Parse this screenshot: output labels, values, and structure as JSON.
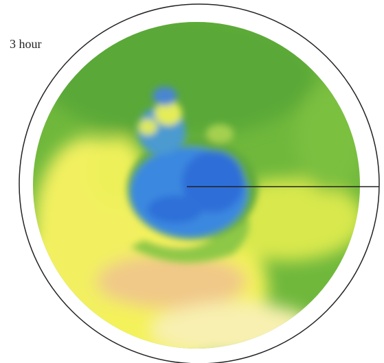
{
  "label": "3 hour"
}
